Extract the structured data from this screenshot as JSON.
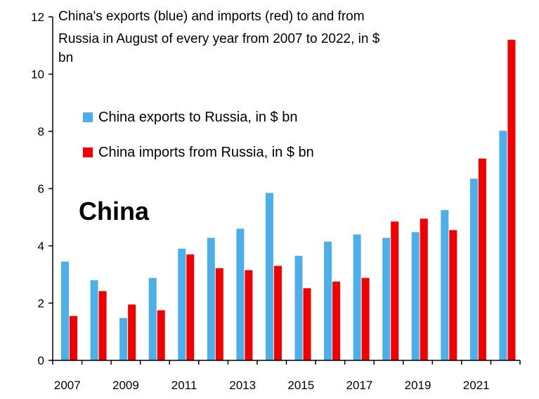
{
  "chart_data": {
    "type": "bar",
    "title_lines": [
      "China's exports (blue) and imports (red) to and from",
      "Russia in August of every year from 2007 to 2022, in $",
      "bn"
    ],
    "annotation": "China",
    "categories": [
      2007,
      2008,
      2009,
      2010,
      2011,
      2012,
      2013,
      2014,
      2015,
      2016,
      2017,
      2018,
      2019,
      2020,
      2021,
      2022
    ],
    "x_tick_labels": [
      "2007",
      "2009",
      "2011",
      "2013",
      "2015",
      "2017",
      "2019",
      "2021"
    ],
    "series": [
      {
        "name": "China exports to Russia, in $ bn",
        "color": "#4DAFEA",
        "values": [
          3.45,
          2.8,
          1.48,
          2.88,
          3.9,
          4.28,
          4.6,
          5.85,
          3.65,
          4.15,
          4.4,
          4.28,
          4.48,
          5.25,
          6.35,
          8.02
        ]
      },
      {
        "name": "China imports from Russia, in $ bn",
        "color": "#F20000",
        "values": [
          1.55,
          2.42,
          1.95,
          1.75,
          3.7,
          3.22,
          3.15,
          3.3,
          2.52,
          2.75,
          2.88,
          4.85,
          4.95,
          4.55,
          7.05,
          11.2
        ]
      }
    ],
    "y_ticks": [
      0,
      2,
      4,
      6,
      8,
      10,
      12
    ],
    "ylim": [
      0,
      12
    ],
    "xlabel": "",
    "ylabel": "",
    "grid": false,
    "legend_position": "upper-left"
  }
}
